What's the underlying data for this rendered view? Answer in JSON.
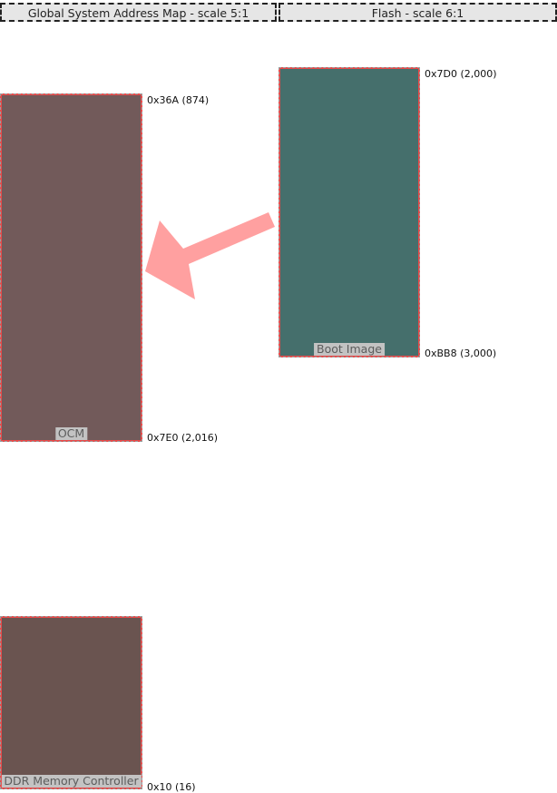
{
  "headers": {
    "global": "Global System Address Map - scale 5:1",
    "flash": "Flash - scale 6:1"
  },
  "regions": {
    "ocm": {
      "label": "OCM",
      "addr_top": "0x36A (874)",
      "addr_bottom": "0x7E0 (2,016)",
      "color": "#725a5a"
    },
    "ddr": {
      "label": "DDR Memory Controller",
      "addr_bottom": "0x10 (16)",
      "color": "#6a5450"
    },
    "boot_image": {
      "label": "Boot Image",
      "addr_top": "0x7D0 (2,000)",
      "addr_bottom": "0xBB8 (3,000)",
      "color": "#456f6c"
    }
  },
  "colors": {
    "region_border": "#e84a4a",
    "arrow": "#ffa0a0",
    "header_bg": "#e6e6e6"
  },
  "arrow": {
    "from": "boot_image",
    "to": "ocm"
  }
}
